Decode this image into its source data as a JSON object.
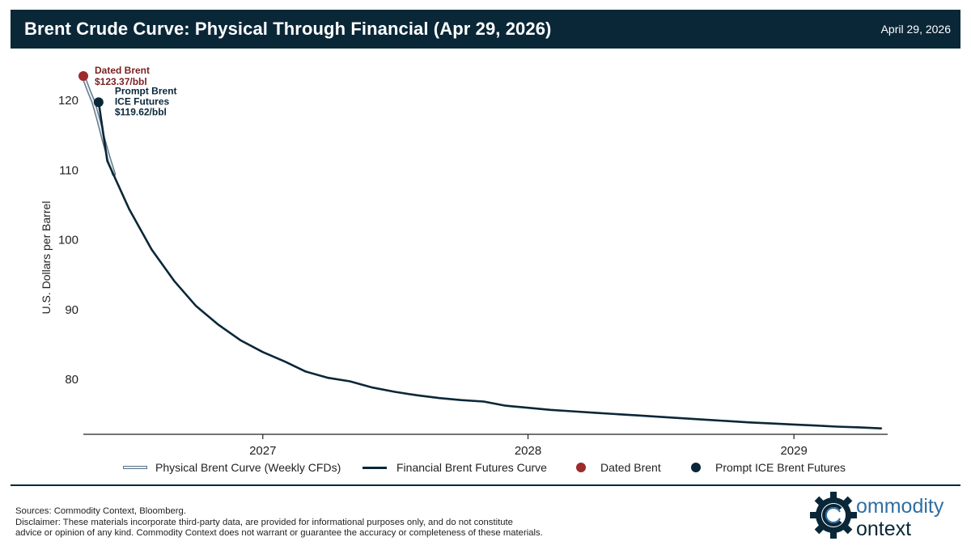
{
  "header": {
    "title": "Brent Crude Curve: Physical Through Financial (Apr 29, 2026)",
    "date": "April 29, 2026"
  },
  "colors": {
    "header_bg": "#0a2738",
    "financial_line": "#0a2738",
    "physical_line_fill": "#e6eef6",
    "physical_line_edge": "#5e7485",
    "dated_brent_dot": "#9e2a2b",
    "prompt_dot": "#0a2738",
    "dated_label": "#7a1f22",
    "prompt_label": "#0a2738"
  },
  "chart_data": {
    "type": "line",
    "title": "Brent Crude Curve: Physical Through Financial (Apr 29, 2026)",
    "ylabel": "U.S. Dollars per Barrel",
    "xlabel": "",
    "ylim": [
      72,
      125
    ],
    "xlim": [
      "2026-04-29",
      "2029-05-10"
    ],
    "yticks": [
      80,
      90,
      100,
      110,
      120
    ],
    "xticks": [
      {
        "date": "2027-01-01",
        "label": "2027"
      },
      {
        "date": "2028-01-01",
        "label": "2028"
      },
      {
        "date": "2029-01-01",
        "label": "2029"
      }
    ],
    "grid": false,
    "legend_position": "bottom",
    "series": [
      {
        "name": "Physical Brent Curve (Weekly CFDs)",
        "style": "double-line",
        "points": [
          {
            "x": "2026-04-29",
            "y": 123.37
          },
          {
            "x": "2026-05-06",
            "y": 121.4
          },
          {
            "x": "2026-05-13",
            "y": 119.6
          },
          {
            "x": "2026-05-20",
            "y": 117.0
          },
          {
            "x": "2026-05-27",
            "y": 114.2
          },
          {
            "x": "2026-06-03",
            "y": 111.6
          },
          {
            "x": "2026-06-10",
            "y": 109.3
          }
        ]
      },
      {
        "name": "Financial Brent Futures Curve",
        "style": "line",
        "points": [
          {
            "x": "2026-05-20",
            "y": 119.62
          },
          {
            "x": "2026-06-01",
            "y": 111.2
          },
          {
            "x": "2026-07-01",
            "y": 104.3
          },
          {
            "x": "2026-08-01",
            "y": 98.5
          },
          {
            "x": "2026-09-01",
            "y": 94.0
          },
          {
            "x": "2026-10-01",
            "y": 90.4
          },
          {
            "x": "2026-11-01",
            "y": 87.7
          },
          {
            "x": "2026-12-01",
            "y": 85.5
          },
          {
            "x": "2027-01-01",
            "y": 83.8
          },
          {
            "x": "2027-02-01",
            "y": 82.4
          },
          {
            "x": "2027-03-01",
            "y": 81.0
          },
          {
            "x": "2027-04-01",
            "y": 80.1
          },
          {
            "x": "2027-05-01",
            "y": 79.6
          },
          {
            "x": "2027-06-01",
            "y": 78.7
          },
          {
            "x": "2027-07-01",
            "y": 78.1
          },
          {
            "x": "2027-08-01",
            "y": 77.6
          },
          {
            "x": "2027-09-01",
            "y": 77.2
          },
          {
            "x": "2027-10-01",
            "y": 76.9
          },
          {
            "x": "2027-11-01",
            "y": 76.7
          },
          {
            "x": "2027-12-01",
            "y": 76.1
          },
          {
            "x": "2028-01-01",
            "y": 75.8
          },
          {
            "x": "2028-02-01",
            "y": 75.5
          },
          {
            "x": "2028-03-01",
            "y": 75.3
          },
          {
            "x": "2028-04-01",
            "y": 75.1
          },
          {
            "x": "2028-05-01",
            "y": 74.9
          },
          {
            "x": "2028-06-01",
            "y": 74.7
          },
          {
            "x": "2028-07-01",
            "y": 74.5
          },
          {
            "x": "2028-08-01",
            "y": 74.3
          },
          {
            "x": "2028-09-01",
            "y": 74.1
          },
          {
            "x": "2028-10-01",
            "y": 73.9
          },
          {
            "x": "2028-11-01",
            "y": 73.7
          },
          {
            "x": "2028-12-01",
            "y": 73.55
          },
          {
            "x": "2029-01-01",
            "y": 73.4
          },
          {
            "x": "2029-02-01",
            "y": 73.25
          },
          {
            "x": "2029-03-01",
            "y": 73.1
          },
          {
            "x": "2029-04-01",
            "y": 73.0
          },
          {
            "x": "2029-05-01",
            "y": 72.85
          }
        ]
      }
    ],
    "markers": [
      {
        "name": "Dated Brent",
        "x": "2026-04-29",
        "y": 123.37,
        "label_line1": "Dated Brent",
        "label_line2": "$123.37/bbl"
      },
      {
        "name": "Prompt ICE Brent Futures",
        "x": "2026-05-20",
        "y": 119.62,
        "label_line1": "Prompt Brent",
        "label_line2": "ICE Futures",
        "label_line3": "$119.62/bbl"
      }
    ]
  },
  "legend": {
    "physical": "Physical Brent Curve (Weekly CFDs)",
    "financial": "Financial Brent Futures Curve",
    "dated": "Dated Brent",
    "prompt": "Prompt ICE Brent Futures"
  },
  "footer": {
    "sources": "Sources: Commodity Context, Bloomberg.",
    "disclaimer_line1": "Disclaimer: These materials incorporate third-party data, are provided for informational purposes only, and do not constitute",
    "disclaimer_line2": "advice or opinion of any kind. Commodity Context does not warrant or guarantee the accuracy or completeness of these materials."
  },
  "logo": {
    "line1": "ommodity",
    "line2": "ontext"
  }
}
